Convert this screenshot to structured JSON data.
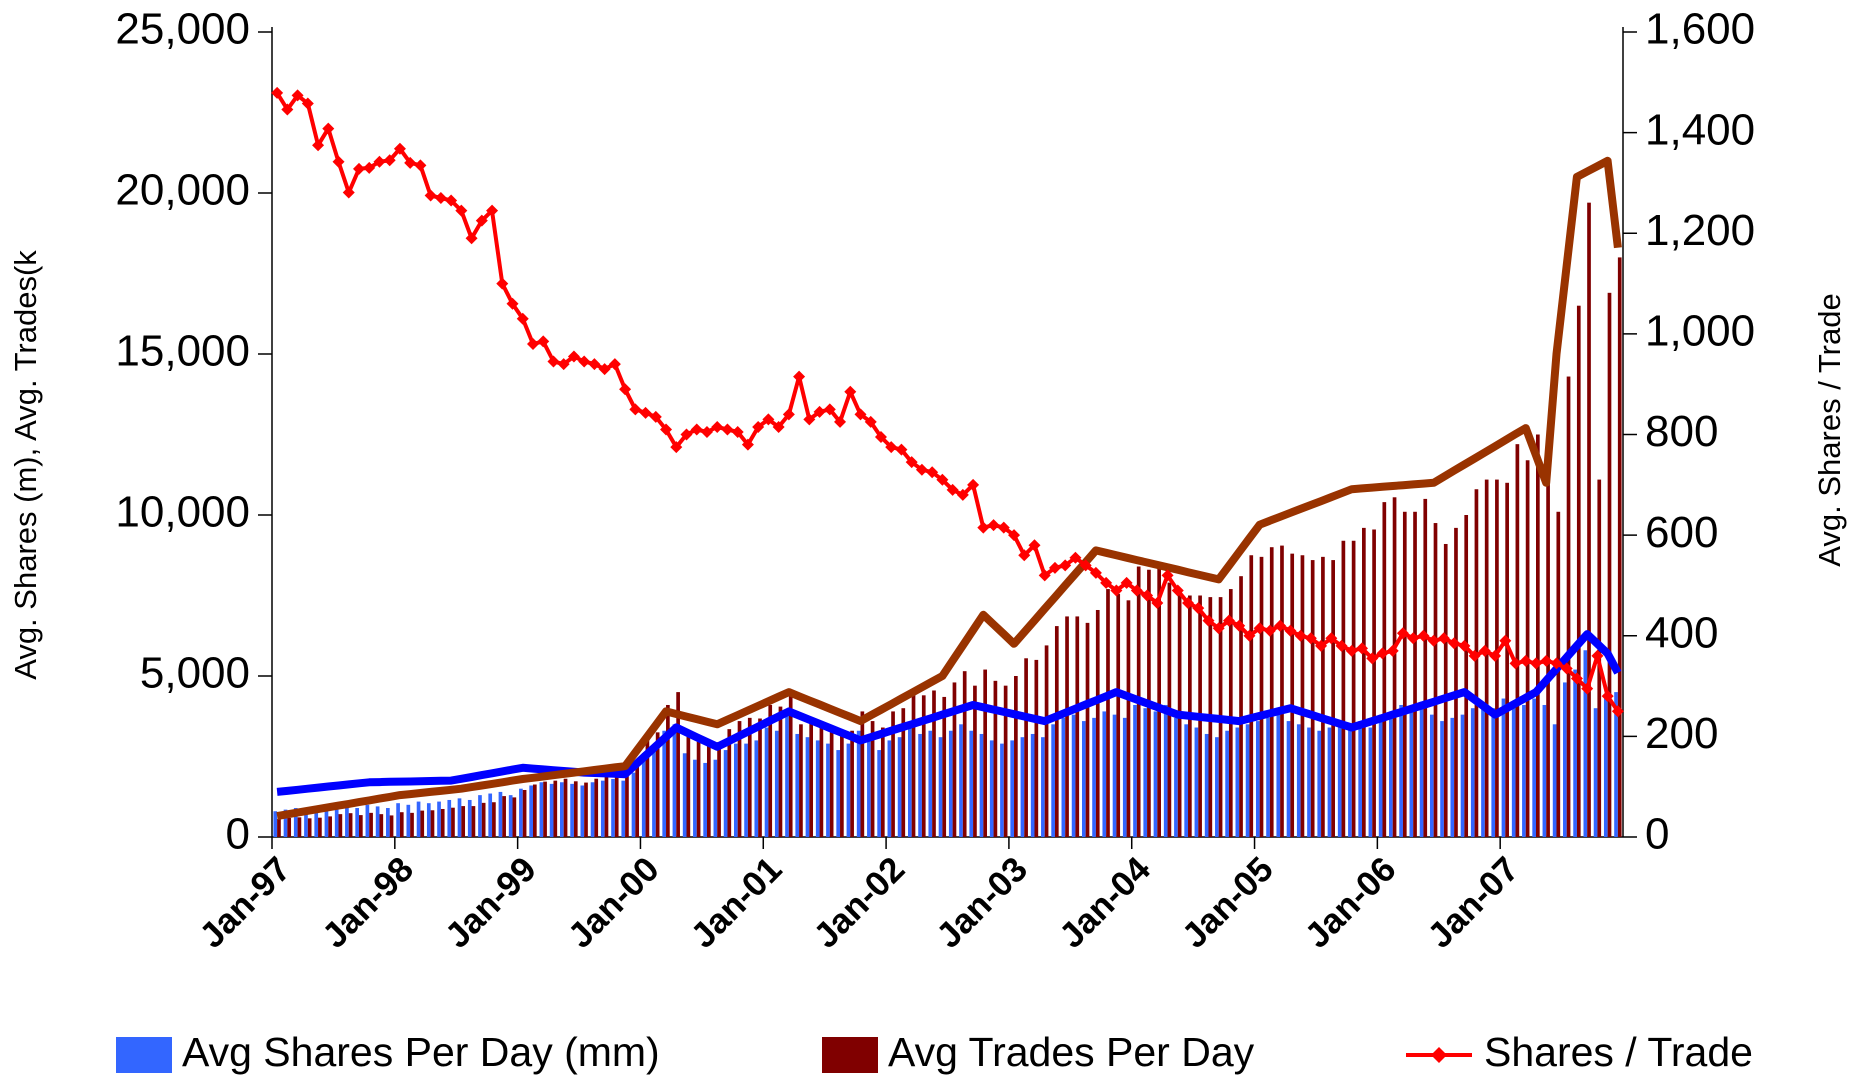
{
  "chart_data": {
    "type": "bar",
    "y_label": "Avg. Shares (m), Avg. Trades(k",
    "y2_label": "Avg. Shares / Trade",
    "legend": "bottom",
    "grid": false,
    "categories": [
      "Jan-97",
      null,
      null,
      null,
      null,
      null,
      null,
      null,
      null,
      null,
      null,
      null,
      "Jan-98",
      null,
      null,
      null,
      null,
      null,
      null,
      null,
      null,
      null,
      null,
      null,
      "Jan-99",
      null,
      null,
      null,
      null,
      null,
      null,
      null,
      null,
      null,
      null,
      null,
      "Jan-00",
      null,
      null,
      null,
      null,
      null,
      null,
      null,
      null,
      null,
      null,
      null,
      "Jan-01",
      null,
      null,
      null,
      null,
      null,
      null,
      null,
      null,
      null,
      null,
      null,
      "Jan-02",
      null,
      null,
      null,
      null,
      null,
      null,
      null,
      null,
      null,
      null,
      null,
      "Jan-03",
      null,
      null,
      null,
      null,
      null,
      null,
      null,
      null,
      null,
      null,
      null,
      "Jan-04",
      null,
      null,
      null,
      null,
      null,
      null,
      null,
      null,
      null,
      null,
      null,
      "Jan-05",
      null,
      null,
      null,
      null,
      null,
      null,
      null,
      null,
      null,
      null,
      null,
      "Jan-06",
      null,
      null,
      null,
      null,
      null,
      null,
      null,
      null,
      null,
      null,
      null,
      "Jan-07",
      null,
      null,
      null,
      null,
      null,
      null,
      null,
      null,
      null,
      null,
      null
    ],
    "ylim": [
      0,
      25000
    ],
    "yticks": [
      0,
      {
        "value": 5000,
        "label": "5,000"
      },
      {
        "value": 10000,
        "label": "10,000"
      },
      {
        "value": 15000,
        "label": "15,000"
      },
      {
        "value": 20000,
        "label": "20,000"
      },
      {
        "value": 25000,
        "label": "25,000"
      }
    ],
    "y2lim": [
      0,
      1600
    ],
    "y2ticks": [
      0,
      200,
      400,
      600,
      800,
      {
        "value": 1000,
        "label": "1,000"
      },
      {
        "value": 1200,
        "label": "1,200"
      },
      {
        "value": 1400,
        "label": "1,400"
      },
      {
        "value": 1600,
        "label": "1,600"
      }
    ],
    "series": [
      {
        "name": "Avg Shares Per Day (mm)",
        "type": "bar",
        "color": "#3366ff",
        "values": [
          800,
          850,
          900,
          850,
          820,
          900,
          950,
          950,
          900,
          1000,
          950,
          900,
          1050,
          1000,
          1100,
          1050,
          1100,
          1150,
          1200,
          1150,
          1300,
          1350,
          1400,
          1300,
          1500,
          1600,
          1700,
          1650,
          1700,
          1650,
          1600,
          1700,
          1750,
          1800,
          1750,
          2000,
          2600,
          2700,
          3300,
          3500,
          2600,
          2400,
          2300,
          2400,
          2700,
          2900,
          2900,
          3000,
          3400,
          3300,
          3800,
          3200,
          3100,
          3000,
          2900,
          2700,
          2900,
          3300,
          3000,
          2700,
          3000,
          3100,
          3400,
          3200,
          3300,
          3100,
          3300,
          3500,
          3300,
          3200,
          3000,
          2900,
          3000,
          3100,
          3200,
          3100,
          3500,
          3700,
          3800,
          3600,
          3700,
          3900,
          3800,
          3700,
          4100,
          4000,
          3900,
          4100,
          3700,
          3500,
          3400,
          3200,
          3100,
          3300,
          3400,
          3500,
          3600,
          3700,
          3800,
          3600,
          3500,
          3400,
          3300,
          3400,
          3500,
          3400,
          3600,
          3400,
          3800,
          3900,
          4100,
          4000,
          4200,
          3800,
          3600,
          3700,
          3800,
          4000,
          4100,
          4000,
          4300,
          4200,
          4100,
          4300,
          4100,
          3500,
          4800,
          5200,
          5800,
          4000,
          4300,
          4500
        ]
      },
      {
        "name": "Avg Trades Per Day",
        "type": "bar",
        "color": "#800000",
        "values": [
          560,
          590,
          610,
          580,
          600,
          640,
          710,
          740,
          680,
          750,
          710,
          670,
          770,
          750,
          820,
          830,
          870,
          910,
          960,
          960,
          1060,
          1080,
          1270,
          1230,
          1460,
          1630,
          1720,
          1750,
          1810,
          1730,
          1690,
          1810,
          1880,
          1920,
          2000,
          2350,
          3100,
          3250,
          4100,
          4500,
          3250,
          2960,
          2850,
          2950,
          3350,
          3600,
          3700,
          3680,
          4100,
          4050,
          4500,
          3500,
          3700,
          3550,
          3400,
          3250,
          3300,
          3900,
          3600,
          3400,
          3900,
          4000,
          4550,
          4400,
          4550,
          4350,
          4800,
          5150,
          4700,
          5200,
          4850,
          4700,
          5000,
          5550,
          5500,
          5950,
          6550,
          6850,
          6850,
          6650,
          7050,
          7700,
          7550,
          7350,
          8400,
          8300,
          8400,
          7900,
          7550,
          7500,
          7500,
          7450,
          7450,
          7700,
          8100,
          8750,
          8700,
          9000,
          9050,
          8800,
          8750,
          8600,
          8700,
          8600,
          9200,
          9200,
          9600,
          9550,
          10400,
          10550,
          10100,
          10100,
          10500,
          9750,
          9100,
          9600,
          10000,
          10800,
          11100,
          11100,
          11000,
          12200,
          11700,
          12500,
          11700,
          10100,
          14300,
          16500,
          19700,
          11100,
          16900,
          18000
        ]
      },
      {
        "type": "line",
        "color": "#0000ff",
        "values": [
          1400,
          1433,
          1467,
          1500,
          1533,
          1567,
          1600,
          1633,
          1667,
          1700,
          1706,
          1713,
          1719,
          1725,
          1731,
          1738,
          1744,
          1750,
          1807,
          1864,
          1921,
          1979,
          2036,
          2093,
          2150,
          2125,
          2100,
          2075,
          2050,
          2025,
          2000,
          1988,
          1975,
          1963,
          1950,
          2240,
          2530,
          2820,
          3110,
          3400,
          3250,
          3100,
          2950,
          2800,
          2957,
          3114,
          3271,
          3429,
          3586,
          3743,
          3900,
          3771,
          3643,
          3514,
          3386,
          3257,
          3129,
          3000,
          3100,
          3200,
          3300,
          3400,
          3500,
          3600,
          3700,
          3800,
          3900,
          4000,
          4100,
          4029,
          3957,
          3886,
          3814,
          3743,
          3671,
          3600,
          3729,
          3857,
          3986,
          4114,
          4243,
          4371,
          4500,
          4383,
          4267,
          4150,
          4033,
          3917,
          3800,
          3767,
          3733,
          3700,
          3667,
          3633,
          3600,
          3680,
          3760,
          3840,
          3920,
          4000,
          3900,
          3800,
          3700,
          3600,
          3500,
          3400,
          3500,
          3600,
          3700,
          3800,
          3900,
          4000,
          4100,
          4200,
          4300,
          4400,
          4500,
          4267,
          4033,
          3800,
          3975,
          4150,
          4325,
          4500,
          4860,
          5220,
          5580,
          5940,
          6300,
          6000,
          5700,
          5100
        ]
      },
      {
        "type": "line",
        "color": "#993300",
        "values": [
          650,
          704,
          758,
          813,
          867,
          921,
          975,
          1029,
          1083,
          1138,
          1192,
          1246,
          1300,
          1333,
          1367,
          1400,
          1433,
          1467,
          1500,
          1550,
          1600,
          1650,
          1700,
          1750,
          1800,
          1840,
          1880,
          1920,
          1960,
          2000,
          2040,
          2080,
          2120,
          2160,
          2200,
          2625,
          3050,
          3475,
          3900,
          3820,
          3740,
          3660,
          3580,
          3500,
          3643,
          3786,
          3929,
          4071,
          4214,
          4357,
          4500,
          4371,
          4243,
          4114,
          3986,
          3857,
          3729,
          3600,
          3775,
          3950,
          4125,
          4300,
          4475,
          4650,
          4825,
          5000,
          5475,
          5950,
          6425,
          6900,
          6600,
          6300,
          6000,
          6363,
          6725,
          7088,
          7450,
          7813,
          8175,
          8538,
          8900,
          8825,
          8750,
          8675,
          8600,
          8525,
          8450,
          8375,
          8300,
          8225,
          8150,
          8075,
          8000,
          8425,
          8850,
          9275,
          9700,
          9822,
          9944,
          10067,
          10189,
          10311,
          10433,
          10556,
          10678,
          10800,
          10825,
          10850,
          10875,
          10900,
          10925,
          10950,
          10975,
          11000,
          11189,
          11378,
          11567,
          11756,
          11944,
          12133,
          12322,
          12511,
          12700,
          11850,
          11000,
          15000,
          17750,
          20500,
          20667,
          20833,
          21000,
          18300
        ]
      },
      {
        "name": "Shares / Trade",
        "type": "line",
        "axis": "y2",
        "markers": "diamond",
        "color": "#ff0000",
        "values": [
          1479,
          1446,
          1474,
          1458,
          1375,
          1408,
          1342,
          1281,
          1328,
          1330,
          1342,
          1345,
          1368,
          1340,
          1335,
          1275,
          1270,
          1265,
          1245,
          1190,
          1225,
          1245,
          1100,
          1060,
          1030,
          980,
          985,
          945,
          940,
          955,
          945,
          940,
          930,
          940,
          890,
          850,
          843,
          835,
          810,
          775,
          800,
          810,
          805,
          815,
          810,
          805,
          780,
          815,
          830,
          815,
          840,
          915,
          830,
          845,
          850,
          825,
          885,
          840,
          825,
          795,
          775,
          770,
          745,
          730,
          725,
          710,
          690,
          680,
          700,
          615,
          620,
          615,
          600,
          560,
          580,
          520,
          535,
          540,
          555,
          540,
          525,
          505,
          490,
          505,
          490,
          480,
          465,
          520,
          490,
          465,
          455,
          430,
          415,
          430,
          420,
          400,
          415,
          410,
          420,
          410,
          400,
          395,
          380,
          395,
          380,
          370,
          375,
          355,
          365,
          370,
          405,
          395,
          400,
          390,
          395,
          385,
          380,
          360,
          370,
          360,
          390,
          345,
          350,
          345,
          350,
          345,
          335,
          315,
          295,
          360,
          280,
          250
        ]
      }
    ]
  }
}
